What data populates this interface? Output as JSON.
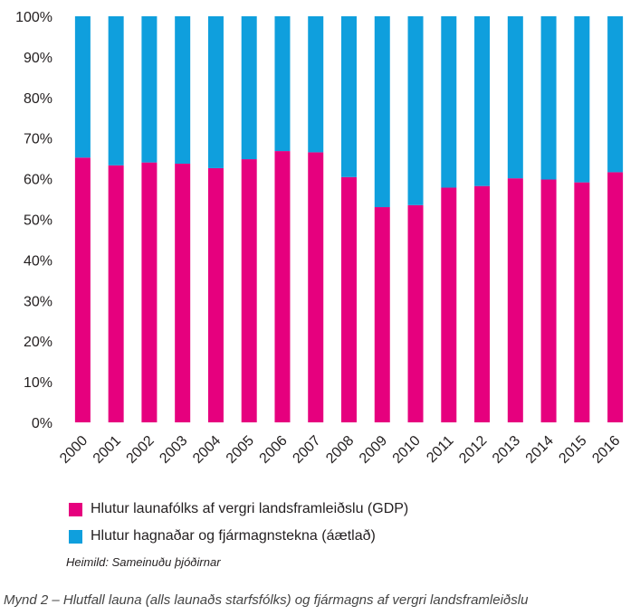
{
  "chart_data": {
    "type": "bar",
    "stacked": true,
    "categories": [
      "2000",
      "2001",
      "2002",
      "2003",
      "2004",
      "2005",
      "2006",
      "2007",
      "2008",
      "2009",
      "2010",
      "2011",
      "2012",
      "2013",
      "2014",
      "2015",
      "2016"
    ],
    "series": [
      {
        "name": "Hlutur launafólks af vergri landsframleiðslu (GDP)",
        "color": "#e6007e",
        "values": [
          65.2,
          63.3,
          64.0,
          63.7,
          62.6,
          64.8,
          66.8,
          66.5,
          60.4,
          53.0,
          53.5,
          57.8,
          58.2,
          60.1,
          59.8,
          59.1,
          61.6
        ]
      },
      {
        "name": "Hlutur hagnaðar og fjármagnstekna (áætlað)",
        "color": "#0f9fdd",
        "values": [
          34.8,
          36.7,
          36.0,
          36.3,
          37.4,
          35.2,
          33.2,
          33.5,
          39.6,
          47.0,
          46.5,
          42.2,
          41.8,
          39.9,
          40.2,
          40.9,
          38.4
        ]
      }
    ],
    "ylim": [
      0,
      100
    ],
    "yticks": [
      "0%",
      "10%",
      "20%",
      "30%",
      "40%",
      "50%",
      "60%",
      "70%",
      "80%",
      "90%",
      "100%"
    ],
    "grid": false,
    "legend_position": "bottom-left"
  },
  "source": "Heimild: Sameinuðu þjóðirnar",
  "caption": "Mynd 2 – Hlutfall launa (alls launaðs starfsfólks) og fjármagns af vergri landsframleiðslu"
}
